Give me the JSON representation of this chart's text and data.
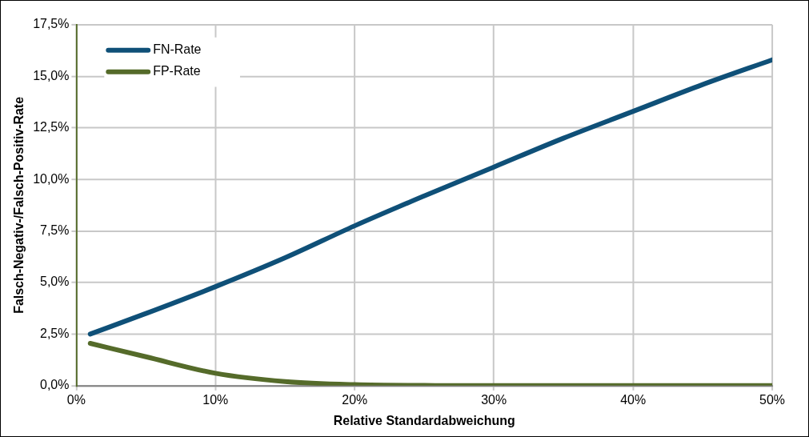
{
  "chart_data": {
    "type": "line",
    "xlabel": "Relative Standardabweichung",
    "ylabel": "Falsch-Negativ-/Falsch-Positiv-Rate",
    "x": [
      1,
      5,
      10,
      15,
      20,
      25,
      30,
      35,
      40,
      45,
      50
    ],
    "series": [
      {
        "name": "FN-Rate",
        "color": "#0f5078",
        "values": [
          2.5,
          3.5,
          4.8,
          6.2,
          7.75,
          9.2,
          10.6,
          12.0,
          13.3,
          14.6,
          15.8
        ]
      },
      {
        "name": "FP-Rate",
        "color": "#556b2a",
        "values": [
          2.05,
          1.4,
          0.6,
          0.2,
          0.05,
          0.01,
          0,
          0,
          0,
          0,
          0
        ]
      }
    ],
    "xlim": [
      0,
      50
    ],
    "xticks": [
      {
        "value": 0,
        "label": "0%"
      },
      {
        "value": 10,
        "label": "10%"
      },
      {
        "value": 20,
        "label": "20%"
      },
      {
        "value": 30,
        "label": "30%"
      },
      {
        "value": 40,
        "label": "40%"
      },
      {
        "value": 50,
        "label": "50%"
      }
    ],
    "ylim": [
      0,
      17.5
    ],
    "yticks": [
      {
        "value": 0,
        "label": "0,0%"
      },
      {
        "value": 2.5,
        "label": "2,5%"
      },
      {
        "value": 5,
        "label": "5,0%"
      },
      {
        "value": 7.5,
        "label": "7,5%"
      },
      {
        "value": 10,
        "label": "10,0%"
      },
      {
        "value": 12.5,
        "label": "12,5%"
      },
      {
        "value": 15,
        "label": "15,0%"
      },
      {
        "value": 17.5,
        "label": "17,5%"
      }
    ],
    "grid": true,
    "legend": "top left",
    "marker": "none",
    "line_style": "solid"
  }
}
